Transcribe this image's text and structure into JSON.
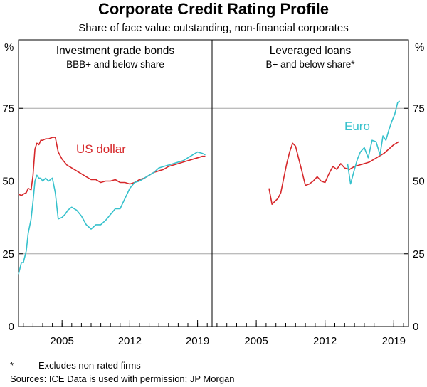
{
  "title": "Corporate Credit Rating Profile",
  "subtitle": "Share of face value outstanding, non-financial corporates",
  "y_unit_left": "%",
  "y_unit_right": "%",
  "footnote_marker": "*",
  "footnote_text": "Excludes non-rated firms",
  "sources": "Sources: ICE Data is used with permission; JP Morgan",
  "chart_data": [
    {
      "type": "line",
      "title": "Investment grade bonds",
      "subtitle": "BBB+ and below share",
      "ylim": [
        0,
        100
      ],
      "xlim": [
        2000.5,
        2020.5
      ],
      "yticks": [
        0,
        25,
        50,
        75
      ],
      "xticks": [
        2005,
        2012,
        2019
      ],
      "grid": true,
      "series": [
        {
          "name": "US dollar",
          "color": "#d6282b",
          "x": [
            2000.5,
            2000.8,
            2001.0,
            2001.3,
            2001.5,
            2001.8,
            2002.0,
            2002.2,
            2002.4,
            2002.6,
            2002.8,
            2003.0,
            2003.3,
            2003.6,
            2004.0,
            2004.3,
            2004.6,
            2005.0,
            2005.5,
            2006.0,
            2006.5,
            2007.0,
            2007.5,
            2008.0,
            2008.5,
            2009.0,
            2009.5,
            2010.0,
            2010.5,
            2011.0,
            2011.5,
            2012.0,
            2012.5,
            2013.0,
            2013.5,
            2014.0,
            2014.5,
            2015.0,
            2015.5,
            2016.0,
            2016.5,
            2017.0,
            2017.5,
            2018.0,
            2018.5,
            2019.0,
            2019.5,
            2019.8
          ],
          "y": [
            45.5,
            45.0,
            45.5,
            46.0,
            47.5,
            47.0,
            52.0,
            61.0,
            63.0,
            62.5,
            64.0,
            64.0,
            64.5,
            64.5,
            65.0,
            65.0,
            60.0,
            57.5,
            55.5,
            54.5,
            53.5,
            52.5,
            51.5,
            50.5,
            50.5,
            49.5,
            50.0,
            50.0,
            50.5,
            49.5,
            49.5,
            49.0,
            49.5,
            50.5,
            51.0,
            52.0,
            53.0,
            53.5,
            54.0,
            55.0,
            55.5,
            56.0,
            56.5,
            57.0,
            57.5,
            58.0,
            58.5,
            58.5
          ]
        },
        {
          "name": "",
          "color": "#36c1cc",
          "x": [
            2000.5,
            2000.8,
            2001.0,
            2001.3,
            2001.5,
            2001.8,
            2002.0,
            2002.2,
            2002.4,
            2002.6,
            2002.8,
            2003.0,
            2003.3,
            2003.6,
            2004.0,
            2004.3,
            2004.6,
            2005.0,
            2005.3,
            2005.6,
            2006.0,
            2006.5,
            2007.0,
            2007.5,
            2008.0,
            2008.5,
            2009.0,
            2009.5,
            2010.0,
            2010.5,
            2011.0,
            2011.5,
            2012.0,
            2012.5,
            2013.0,
            2013.5,
            2014.0,
            2014.5,
            2015.0,
            2015.5,
            2016.0,
            2016.5,
            2017.0,
            2017.5,
            2018.0,
            2018.5,
            2019.0,
            2019.5,
            2019.8
          ],
          "y": [
            18.0,
            22.0,
            22.0,
            26.0,
            32.0,
            37.0,
            43.0,
            50.0,
            52.0,
            51.0,
            51.0,
            50.0,
            51.0,
            50.0,
            51.0,
            46.0,
            37.0,
            37.5,
            38.5,
            40.0,
            41.0,
            40.0,
            38.0,
            35.0,
            33.5,
            35.0,
            35.0,
            36.5,
            38.5,
            40.5,
            40.5,
            44.0,
            47.5,
            49.5,
            50.0,
            51.0,
            52.0,
            53.0,
            54.5,
            55.0,
            55.5,
            56.0,
            56.5,
            57.0,
            58.0,
            59.0,
            60.0,
            59.5,
            59.0
          ]
        }
      ]
    },
    {
      "type": "line",
      "title": "Leveraged loans",
      "subtitle": "B+ and below share*",
      "ylim": [
        0,
        100
      ],
      "xlim": [
        2000.5,
        2020.5
      ],
      "yticks": [
        0,
        25,
        50,
        75
      ],
      "xticks": [
        2005,
        2012,
        2019
      ],
      "grid": true,
      "series": [
        {
          "name": "",
          "color": "#d6282b",
          "x": [
            2006.3,
            2006.6,
            2006.9,
            2007.2,
            2007.5,
            2007.8,
            2008.1,
            2008.4,
            2008.7,
            2009.0,
            2009.3,
            2009.6,
            2010.0,
            2010.4,
            2010.8,
            2011.2,
            2011.6,
            2012.0,
            2012.4,
            2012.8,
            2013.2,
            2013.6,
            2014.0,
            2014.5,
            2015.0,
            2015.5,
            2016.0,
            2016.5,
            2017.0,
            2017.5,
            2018.0,
            2018.5,
            2019.0,
            2019.5
          ],
          "y": [
            47.5,
            42.0,
            43.0,
            44.0,
            46.0,
            51.0,
            56.0,
            60.0,
            63.0,
            62.0,
            58.0,
            54.0,
            48.5,
            49.0,
            50.0,
            51.5,
            50.0,
            49.5,
            52.5,
            55.0,
            54.0,
            56.0,
            54.5,
            54.0,
            55.0,
            55.5,
            56.0,
            56.5,
            57.5,
            58.5,
            59.5,
            61.0,
            62.5,
            63.5
          ]
        },
        {
          "name": "Euro",
          "color": "#36c1cc",
          "x": [
            2014.3,
            2014.6,
            2015.0,
            2015.3,
            2015.6,
            2016.0,
            2016.4,
            2016.8,
            2017.2,
            2017.6,
            2017.9,
            2018.2,
            2018.5,
            2018.8,
            2019.1,
            2019.4,
            2019.6
          ],
          "y": [
            56.0,
            49.0,
            54.0,
            57.5,
            60.0,
            61.5,
            58.0,
            64.0,
            63.5,
            59.0,
            65.5,
            64.0,
            67.5,
            70.5,
            73.0,
            77.0,
            77.5
          ]
        }
      ]
    }
  ],
  "series_labels": {
    "us_dollar": "US dollar",
    "euro": "Euro"
  }
}
